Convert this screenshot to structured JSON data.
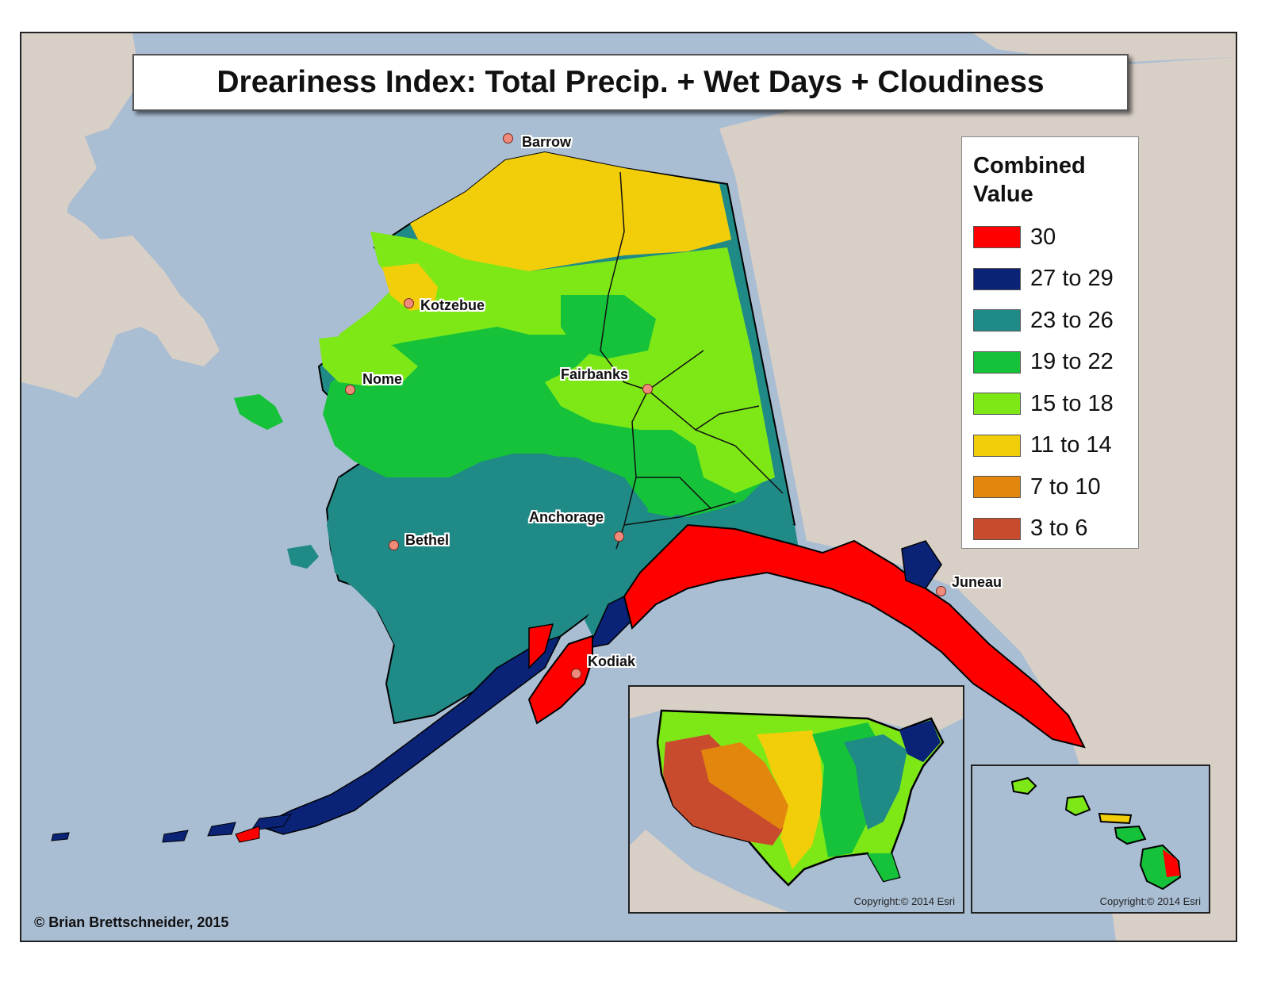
{
  "title": "Dreariness Index: Total Precip. + Wet Days + Cloudiness",
  "legend": {
    "title_line1": "Combined",
    "title_line2": "Value",
    "items": [
      {
        "label": "30",
        "color": "#ff0000"
      },
      {
        "label": "27 to 29",
        "color": "#0a2377"
      },
      {
        "label": "23 to 26",
        "color": "#1f8a86"
      },
      {
        "label": "19 to 22",
        "color": "#15c239"
      },
      {
        "label": "15 to 18",
        "color": "#7ee817"
      },
      {
        "label": "11 to 14",
        "color": "#f2ce0a"
      },
      {
        "label": "7 to 10",
        "color": "#e3860d"
      },
      {
        "label": "3 to 6",
        "color": "#c84b2e"
      }
    ]
  },
  "cities": [
    {
      "name": "Barrow"
    },
    {
      "name": "Kotzebue"
    },
    {
      "name": "Nome"
    },
    {
      "name": "Fairbanks"
    },
    {
      "name": "Anchorage"
    },
    {
      "name": "Bethel"
    },
    {
      "name": "Kodiak"
    },
    {
      "name": "Juneau"
    }
  ],
  "insets": {
    "conus_copyright": "Copyright:© 2014 Esri",
    "hawaii_copyright": "Copyright:© 2014 Esri"
  },
  "credit": "© Brian Brettschneider, 2015",
  "colors": {
    "water": "#a9bdd3",
    "land_background": "#d8cfc7"
  }
}
